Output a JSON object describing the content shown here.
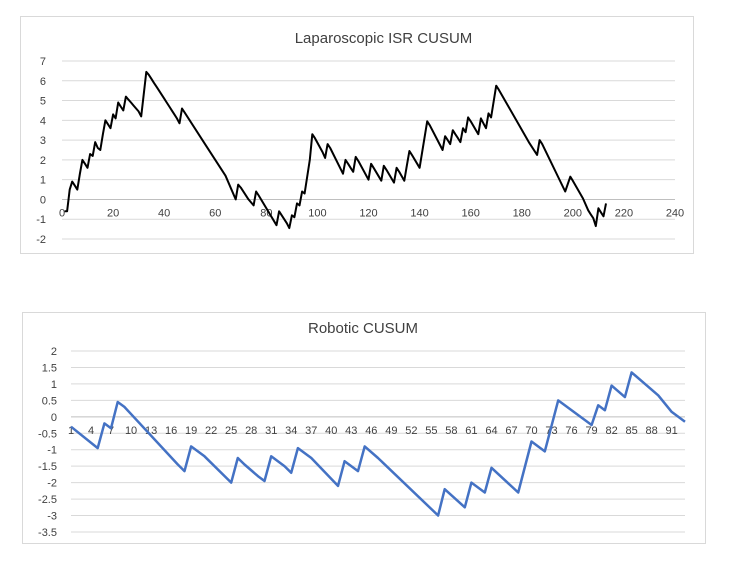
{
  "chart_data": [
    {
      "type": "line",
      "title": "Laparoscopic ISR CUSUM",
      "xlabel": "",
      "ylabel": "",
      "xlim": [
        0,
        240
      ],
      "ylim": [
        -2,
        7
      ],
      "x_ticks": [
        0,
        20,
        40,
        60,
        80,
        100,
        120,
        140,
        160,
        180,
        200,
        220,
        240
      ],
      "y_ticks": [
        -2,
        -1,
        0,
        1,
        2,
        3,
        4,
        5,
        6,
        7
      ],
      "grid": true,
      "legend": "none",
      "line_color": "#000000",
      "series": [
        {
          "points": [
            [
              1,
              -0.6
            ],
            [
              2,
              -0.6
            ],
            [
              3,
              0.5
            ],
            [
              4,
              0.9
            ],
            [
              5,
              0.7
            ],
            [
              6,
              0.5
            ],
            [
              7,
              1.3
            ],
            [
              8,
              2.0
            ],
            [
              9,
              1.8
            ],
            [
              10,
              1.6
            ],
            [
              11,
              2.3
            ],
            [
              12,
              2.2
            ],
            [
              13,
              2.9
            ],
            [
              14,
              2.6
            ],
            [
              15,
              2.5
            ],
            [
              16,
              3.3
            ],
            [
              17,
              4.0
            ],
            [
              18,
              3.8
            ],
            [
              19,
              3.6
            ],
            [
              20,
              4.3
            ],
            [
              21,
              4.1
            ],
            [
              22,
              4.9
            ],
            [
              23,
              4.7
            ],
            [
              24,
              4.5
            ],
            [
              25,
              5.2
            ],
            [
              26,
              5.05
            ],
            [
              27,
              4.9
            ],
            [
              28,
              4.75
            ],
            [
              29,
              4.6
            ],
            [
              30,
              4.45
            ],
            [
              31,
              4.2
            ],
            [
              32,
              5.3
            ],
            [
              33,
              6.45
            ],
            [
              34,
              6.3
            ],
            [
              35,
              6.1
            ],
            [
              36,
              5.9
            ],
            [
              37,
              5.7
            ],
            [
              38,
              5.5
            ],
            [
              39,
              5.3
            ],
            [
              40,
              5.1
            ],
            [
              41,
              4.9
            ],
            [
              42,
              4.7
            ],
            [
              43,
              4.5
            ],
            [
              44,
              4.3
            ],
            [
              45,
              4.1
            ],
            [
              46,
              3.85
            ],
            [
              47,
              4.6
            ],
            [
              48,
              4.4
            ],
            [
              56,
              2.8
            ],
            [
              64,
              1.2
            ],
            [
              68,
              0.0
            ],
            [
              69,
              0.75
            ],
            [
              70,
              0.6
            ],
            [
              73,
              0.0
            ],
            [
              75,
              -0.3
            ],
            [
              76,
              0.4
            ],
            [
              77,
              0.2
            ],
            [
              84,
              -1.3
            ],
            [
              85,
              -0.6
            ],
            [
              86,
              -0.8
            ],
            [
              88,
              -1.2
            ],
            [
              89,
              -1.45
            ],
            [
              90,
              -0.8
            ],
            [
              91,
              -0.9
            ],
            [
              92,
              -0.2
            ],
            [
              93,
              -0.3
            ],
            [
              94,
              0.4
            ],
            [
              95,
              0.3
            ],
            [
              97,
              2.0
            ],
            [
              98,
              3.3
            ],
            [
              99,
              3.1
            ],
            [
              102,
              2.4
            ],
            [
              103,
              2.1
            ],
            [
              104,
              2.8
            ],
            [
              105,
              2.6
            ],
            [
              110,
              1.3
            ],
            [
              111,
              2.0
            ],
            [
              112,
              1.8
            ],
            [
              113,
              1.6
            ],
            [
              114,
              1.4
            ],
            [
              115,
              2.15
            ],
            [
              116,
              1.95
            ],
            [
              120,
              1.0
            ],
            [
              121,
              1.8
            ],
            [
              122,
              1.6
            ],
            [
              125,
              0.95
            ],
            [
              126,
              1.7
            ],
            [
              127,
              1.5
            ],
            [
              130,
              0.85
            ],
            [
              131,
              1.6
            ],
            [
              132,
              1.4
            ],
            [
              134,
              0.95
            ],
            [
              135,
              1.7
            ],
            [
              136,
              2.45
            ],
            [
              137,
              2.25
            ],
            [
              140,
              1.6
            ],
            [
              143,
              3.95
            ],
            [
              144,
              3.75
            ],
            [
              149,
              2.5
            ],
            [
              150,
              3.2
            ],
            [
              151,
              3.0
            ],
            [
              152,
              2.8
            ],
            [
              153,
              3.5
            ],
            [
              154,
              3.3
            ],
            [
              155,
              3.1
            ],
            [
              156,
              2.9
            ],
            [
              157,
              3.6
            ],
            [
              158,
              3.4
            ],
            [
              159,
              4.15
            ],
            [
              160,
              3.95
            ],
            [
              163,
              3.3
            ],
            [
              164,
              4.1
            ],
            [
              165,
              3.85
            ],
            [
              166,
              3.6
            ],
            [
              167,
              4.35
            ],
            [
              168,
              4.15
            ],
            [
              170,
              5.75
            ],
            [
              171,
              5.55
            ],
            [
              183,
              2.85
            ],
            [
              186,
              2.25
            ],
            [
              187,
              3.0
            ],
            [
              188,
              2.8
            ],
            [
              197,
              0.4
            ],
            [
              199,
              1.15
            ],
            [
              200,
              0.95
            ],
            [
              204,
              0.05
            ],
            [
              206,
              -0.55
            ],
            [
              207,
              -0.75
            ],
            [
              208,
              -0.95
            ],
            [
              209,
              -1.35
            ],
            [
              210,
              -0.45
            ],
            [
              211,
              -0.65
            ],
            [
              212,
              -0.85
            ],
            [
              213,
              -0.2
            ]
          ]
        }
      ]
    },
    {
      "type": "line",
      "title": "Robotic CUSUM",
      "xlabel": "",
      "ylabel": "",
      "ylim": [
        -3.5,
        2
      ],
      "x_tick_labels": [
        "1",
        "4",
        "7",
        "10",
        "13",
        "16",
        "19",
        "22",
        "25",
        "28",
        "31",
        "34",
        "37",
        "40",
        "43",
        "46",
        "49",
        "52",
        "55",
        "58",
        "61",
        "64",
        "67",
        "70",
        "73",
        "76",
        "79",
        "82",
        "85",
        "88",
        "91"
      ],
      "y_ticks": [
        -3.5,
        -3,
        -2.5,
        -2,
        -1.5,
        -1,
        -0.5,
        0,
        0.5,
        1,
        1.5,
        2
      ],
      "grid": true,
      "legend": "none",
      "line_color": "#4472c4",
      "series": [
        {
          "points": [
            [
              1,
              -0.3
            ],
            [
              5,
              -0.95
            ],
            [
              6,
              -0.2
            ],
            [
              7,
              -0.35
            ],
            [
              8,
              0.45
            ],
            [
              9,
              0.3
            ],
            [
              17,
              -1.45
            ],
            [
              18,
              -1.65
            ],
            [
              19,
              -0.9
            ],
            [
              21,
              -1.2
            ],
            [
              25,
              -2.0
            ],
            [
              26,
              -1.25
            ],
            [
              27,
              -1.45
            ],
            [
              29,
              -1.8
            ],
            [
              30,
              -1.95
            ],
            [
              31,
              -1.2
            ],
            [
              33,
              -1.5
            ],
            [
              34,
              -1.7
            ],
            [
              35,
              -0.95
            ],
            [
              37,
              -1.25
            ],
            [
              41,
              -2.1
            ],
            [
              42,
              -1.35
            ],
            [
              44,
              -1.65
            ],
            [
              45,
              -0.9
            ],
            [
              47,
              -1.25
            ],
            [
              56,
              -3.0
            ],
            [
              57,
              -2.2
            ],
            [
              60,
              -2.75
            ],
            [
              61,
              -2.0
            ],
            [
              63,
              -2.3
            ],
            [
              64,
              -1.55
            ],
            [
              68,
              -2.3
            ],
            [
              70,
              -0.75
            ],
            [
              72,
              -1.05
            ],
            [
              74,
              0.5
            ],
            [
              79,
              -0.25
            ],
            [
              80,
              0.35
            ],
            [
              81,
              0.2
            ],
            [
              82,
              0.95
            ],
            [
              84,
              0.6
            ],
            [
              85,
              1.35
            ],
            [
              89,
              0.65
            ],
            [
              91,
              0.15
            ],
            [
              93,
              -0.15
            ]
          ]
        }
      ]
    }
  ]
}
